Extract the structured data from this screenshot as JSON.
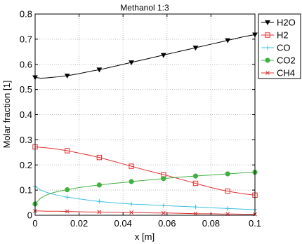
{
  "chart_data": {
    "type": "line",
    "title": "Methanol 1:3",
    "xlabel": "x [m]",
    "ylabel": "Molar fraction [1]",
    "xlim": [
      0,
      0.1
    ],
    "ylim": [
      0,
      0.8
    ],
    "xticks": [
      0,
      0.02,
      0.04,
      0.06,
      0.08,
      0.1
    ],
    "xtick_labels": [
      "0",
      "0.02",
      "0.04",
      "0.06",
      "0.08",
      "0.1"
    ],
    "yticks": [
      0,
      0.1,
      0.2,
      0.3,
      0.4,
      0.5,
      0.6,
      0.7,
      0.8
    ],
    "ytick_labels": [
      "0",
      "0.1",
      "0.2",
      "0.3",
      "0.4",
      "0.5",
      "0.6",
      "0.7",
      "0.8"
    ],
    "grid": true,
    "legend_position": "outside-right",
    "marker_x": [
      0,
      0.0146,
      0.0292,
      0.0438,
      0.0584,
      0.073,
      0.0876,
      0.1
    ],
    "x": [
      0,
      0.0025,
      0.005,
      0.0075,
      0.01,
      0.015,
      0.02,
      0.025,
      0.03,
      0.035,
      0.04,
      0.045,
      0.05,
      0.055,
      0.06,
      0.065,
      0.07,
      0.075,
      0.08,
      0.085,
      0.09,
      0.095,
      0.1
    ],
    "series": [
      {
        "name": "H2O",
        "color": "#000000",
        "marker": "triangle-down",
        "values": [
          0.548,
          0.545,
          0.546,
          0.548,
          0.55,
          0.555,
          0.563,
          0.572,
          0.58,
          0.59,
          0.6,
          0.61,
          0.62,
          0.63,
          0.64,
          0.65,
          0.66,
          0.67,
          0.68,
          0.69,
          0.7,
          0.71,
          0.718
        ]
      },
      {
        "name": "H2",
        "color": "#e03030",
        "marker": "square",
        "values": [
          0.272,
          0.27,
          0.268,
          0.266,
          0.263,
          0.256,
          0.247,
          0.238,
          0.228,
          0.216,
          0.204,
          0.192,
          0.18,
          0.169,
          0.158,
          0.146,
          0.134,
          0.122,
          0.11,
          0.1,
          0.092,
          0.085,
          0.08
        ]
      },
      {
        "name": "CO",
        "color": "#40c0e0",
        "marker": "plus",
        "values": [
          0.115,
          0.1,
          0.092,
          0.085,
          0.08,
          0.071,
          0.065,
          0.059,
          0.054,
          0.05,
          0.047,
          0.044,
          0.042,
          0.04,
          0.038,
          0.036,
          0.034,
          0.032,
          0.03,
          0.028,
          0.026,
          0.024,
          0.022
        ]
      },
      {
        "name": "CO2",
        "color": "#40b040",
        "marker": "circle",
        "values": [
          0.045,
          0.068,
          0.08,
          0.088,
          0.094,
          0.102,
          0.11,
          0.116,
          0.121,
          0.126,
          0.13,
          0.135,
          0.139,
          0.143,
          0.147,
          0.151,
          0.154,
          0.157,
          0.16,
          0.163,
          0.166,
          0.169,
          0.171
        ]
      },
      {
        "name": "CH4",
        "color": "#e03030",
        "marker": "x",
        "values": [
          0.017,
          0.017,
          0.016,
          0.016,
          0.016,
          0.015,
          0.014,
          0.013,
          0.013,
          0.012,
          0.011,
          0.011,
          0.01,
          0.009,
          0.009,
          0.008,
          0.007,
          0.006,
          0.006,
          0.005,
          0.005,
          0.004,
          0.004
        ]
      }
    ]
  }
}
